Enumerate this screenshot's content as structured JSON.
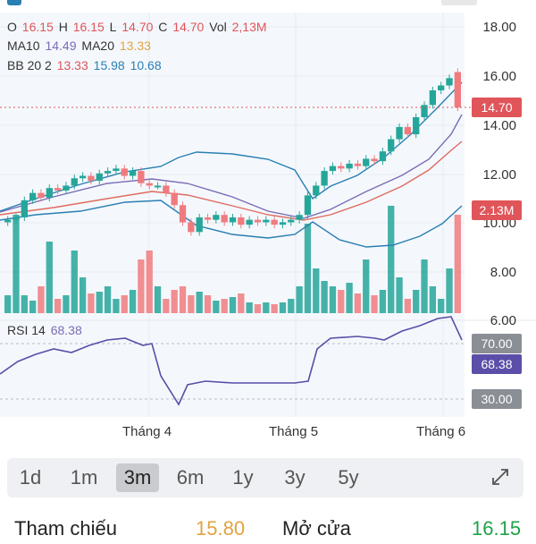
{
  "legend": {
    "o_label": "O",
    "o_value": "16.15",
    "h_label": "H",
    "h_value": "16.15",
    "l_label": "L",
    "l_value": "14.70",
    "c_label": "C",
    "c_value": "14.70",
    "vol_label": "Vol",
    "vol_value": "2,13M",
    "ma10_label": "MA10",
    "ma10_value": "14.49",
    "ma20_label": "MA20",
    "ma20_value": "13.33",
    "bb_label": "BB 20 2",
    "bb_mid": "13.33",
    "bb_upper": "15.98",
    "bb_lower": "10.68"
  },
  "y_axis": [
    "18.00",
    "16.00",
    "14.00",
    "12.00",
    "10.00",
    "8.00",
    "6.00"
  ],
  "price_tag": "14.70",
  "volume_tag": "2.13M",
  "rsi": {
    "label": "RSI 14",
    "value": "68.38",
    "upper_level": "70.00",
    "lower_level": "30.00"
  },
  "x_axis": [
    "Tháng 4",
    "Tháng 5",
    "Tháng 6"
  ],
  "timeframes": {
    "items": [
      "1d",
      "1m",
      "3m",
      "6m",
      "1y",
      "3y",
      "5y"
    ],
    "selected": "3m"
  },
  "footer": {
    "ref_label": "Tham chiếu",
    "ref_value": "15.80",
    "open_label": "Mở cửa",
    "open_value": "16.15"
  },
  "colors": {
    "up": "#26a69a",
    "down": "#ef7b7f",
    "ma10": "#7b6bb5",
    "ma20": "#e06a5f",
    "bb": "#2a7fb3",
    "rsi": "#5a4ea8"
  },
  "chart_data": {
    "type": "candlestick",
    "x": [
      "Tháng 4",
      "Tháng 5",
      "Tháng 6"
    ],
    "ylim": [
      6,
      18
    ],
    "last_candle": {
      "open": 16.15,
      "high": 16.15,
      "low": 14.7,
      "close": 14.7,
      "volume": "2,13M"
    },
    "indicators": {
      "ma10": 14.49,
      "ma20": 13.33,
      "bb": {
        "period": 20,
        "k": 2,
        "middle": 13.33,
        "upper": 15.98,
        "lower": 10.68
      },
      "rsi": {
        "period": 14,
        "value": 68.38,
        "levels": [
          70,
          30
        ]
      }
    },
    "grid": true
  }
}
